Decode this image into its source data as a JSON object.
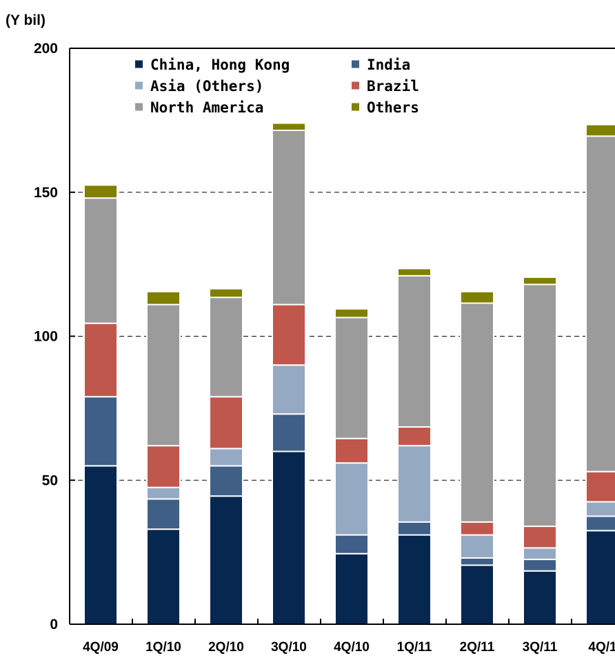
{
  "chart_data": {
    "type": "bar",
    "stacked": true,
    "unit_label": "(Y bil)",
    "ylim": [
      0,
      200
    ],
    "yticks": [
      0,
      50,
      100,
      150,
      200
    ],
    "grid": "horizontal dashed",
    "legend_position": "top-left",
    "categories": [
      "4Q/09",
      "1Q/10",
      "2Q/10",
      "3Q/10",
      "4Q/10",
      "1Q/11",
      "2Q/11",
      "3Q/11",
      "4Q/1"
    ],
    "series": [
      {
        "name": "China, Hong Kong",
        "color": "#06274f",
        "values": [
          55,
          33,
          44.5,
          60,
          24.5,
          31,
          20.5,
          18.5,
          32.5
        ]
      },
      {
        "name": "India",
        "color": "#3f5f87",
        "values": [
          24,
          10.5,
          10.5,
          13,
          6.5,
          4.5,
          2.5,
          4,
          5
        ]
      },
      {
        "name": "Asia (Others)",
        "color": "#96a9c2",
        "values": [
          0,
          4,
          6,
          17,
          25,
          26.5,
          8,
          4,
          5
        ]
      },
      {
        "name": "Brazil",
        "color": "#c0574c",
        "values": [
          25.5,
          14.5,
          18,
          21,
          8.5,
          6.5,
          4.5,
          7.5,
          10.5
        ]
      },
      {
        "name": "North America",
        "color": "#9b9b9b",
        "values": [
          43.5,
          49,
          34.5,
          60.5,
          42,
          52.5,
          76,
          84,
          116.5
        ]
      },
      {
        "name": "Others",
        "color": "#7f7f00",
        "values": [
          4.5,
          4.5,
          3,
          2.5,
          3,
          2.5,
          4,
          2.5,
          4
        ]
      }
    ]
  }
}
